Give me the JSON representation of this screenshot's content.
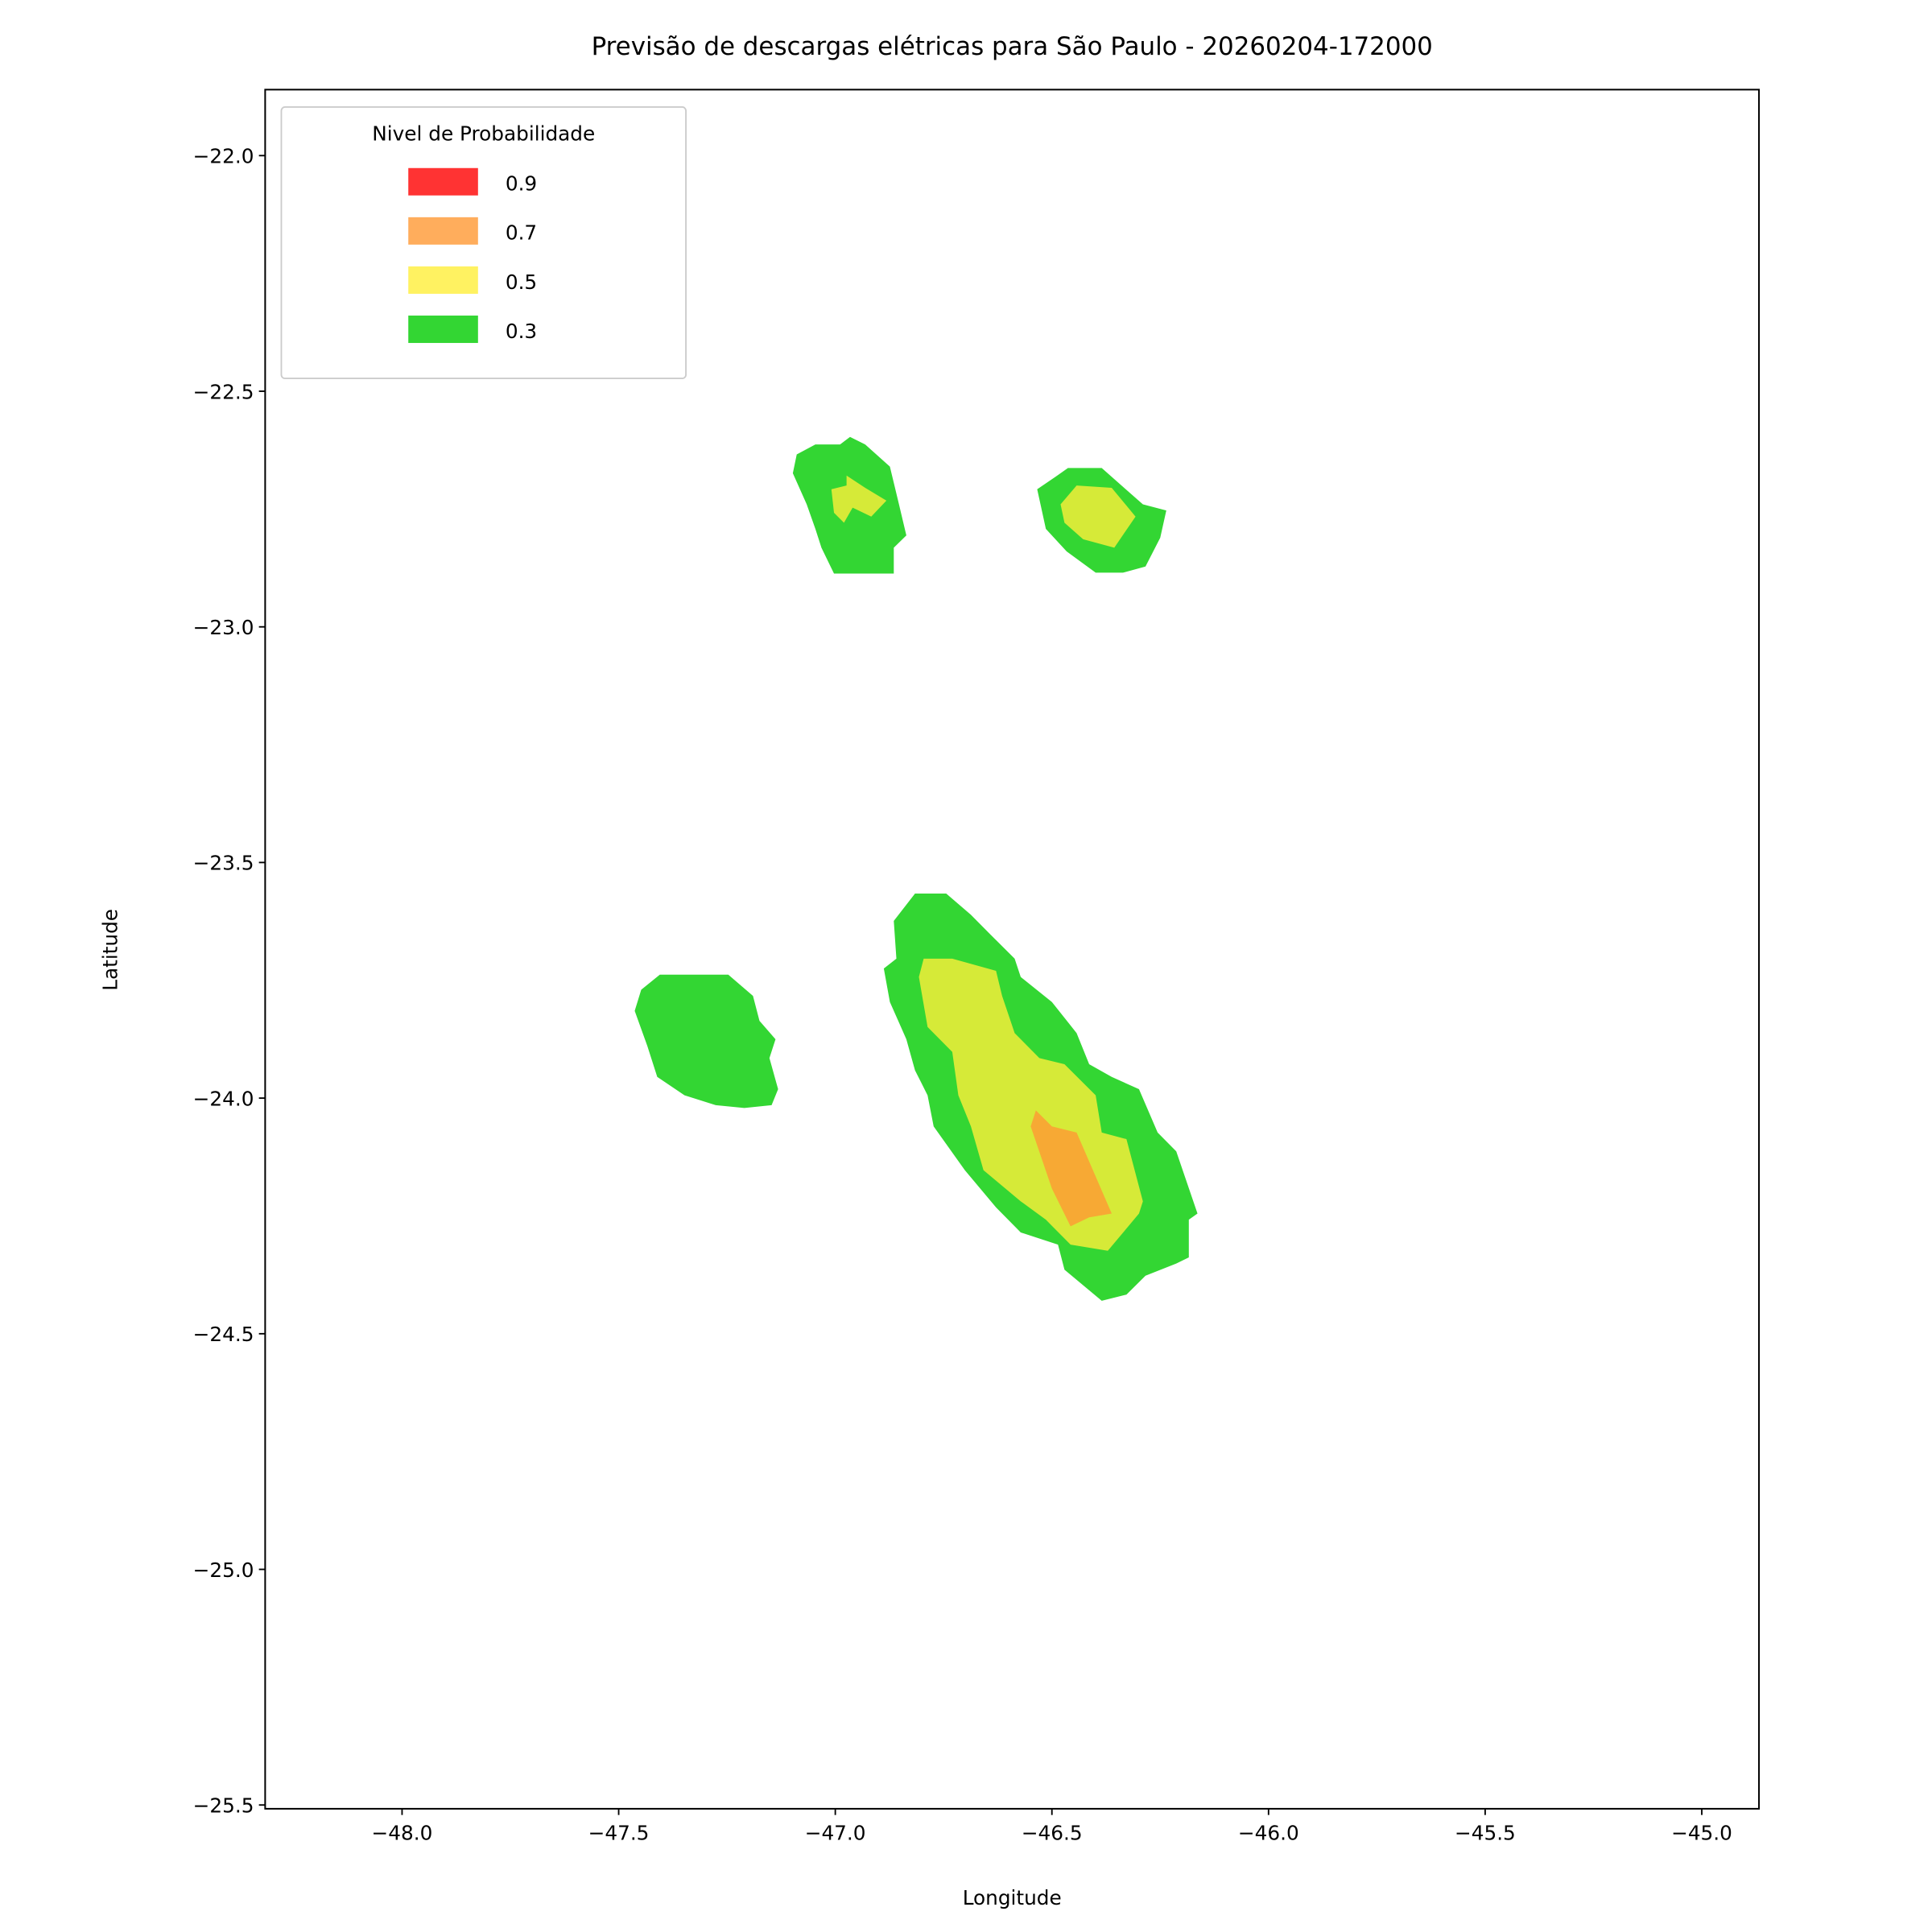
{
  "chart_data": {
    "type": "contour",
    "title": "Previsão de descargas elétricas para São Paulo - 20260204-172000",
    "xlabel": "Longitude",
    "ylabel": "Latitude",
    "xlim": [
      -48.316,
      -44.868
    ],
    "ylim": [
      -25.508,
      -21.86
    ],
    "xticks": [
      {
        "value": -48,
        "label": "−48.0"
      },
      {
        "value": -47.5,
        "label": "−47.5"
      },
      {
        "value": -47,
        "label": "−47.0"
      },
      {
        "value": -46.5,
        "label": "−46.5"
      },
      {
        "value": -46,
        "label": "−46.0"
      },
      {
        "value": -45.5,
        "label": "−45.5"
      },
      {
        "value": -45,
        "label": "−45.0"
      }
    ],
    "yticks": [
      {
        "value": -22,
        "label": "−22.0"
      },
      {
        "value": -22.5,
        "label": "−22.5"
      },
      {
        "value": -23,
        "label": "−23.0"
      },
      {
        "value": -23.5,
        "label": "−23.5"
      },
      {
        "value": -24,
        "label": "−24.0"
      },
      {
        "value": -24.5,
        "label": "−24.5"
      },
      {
        "value": -25,
        "label": "−25.0"
      },
      {
        "value": -25.5,
        "label": "−25.5"
      }
    ],
    "legend_title": "Nivel de Probabilidade",
    "legend": "upper left",
    "alpha": 0.8,
    "grid": false,
    "series": [
      {
        "name": "0.9",
        "color": "#ff0000",
        "regions": []
      },
      {
        "name": "0.7",
        "color": "#ff9933",
        "regions": [
          {
            "x": [
              -46.549,
              -46.537,
              -46.5,
              -46.443,
              -46.362,
              -46.414,
              -46.457,
              -46.5
            ],
            "y": [
              -24.06,
              -24.026,
              -24.06,
              -24.073,
              -24.245,
              -24.253,
              -24.272,
              -24.192
            ]
          }
        ]
      },
      {
        "name": "0.5",
        "color": "#ffef3a",
        "regions": [
          {
            "x": [
              -47.009,
              -46.974,
              -46.974,
              -46.931,
              -46.882,
              -46.917,
              -46.96,
              -46.98,
              -47.003
            ],
            "y": [
              -22.708,
              -22.7,
              -22.679,
              -22.705,
              -22.732,
              -22.766,
              -22.747,
              -22.779,
              -22.758
            ]
          },
          {
            "x": [
              -46.48,
              -46.443,
              -46.362,
              -46.307,
              -46.356,
              -46.428,
              -46.471
            ],
            "y": [
              -22.74,
              -22.7,
              -22.705,
              -22.766,
              -22.832,
              -22.814,
              -22.779
            ]
          },
          {
            "x": [
              -46.807,
              -46.796,
              -46.73,
              -46.629,
              -46.615,
              -46.586,
              -46.529,
              -46.471,
              -46.399,
              -46.385,
              -46.328,
              -46.29,
              -46.299,
              -46.371,
              -46.457,
              -46.514,
              -46.572,
              -46.658,
              -46.687,
              -46.716,
              -46.73,
              -46.787
            ],
            "y": [
              -23.743,
              -23.704,
              -23.704,
              -23.73,
              -23.783,
              -23.862,
              -23.915,
              -23.928,
              -23.994,
              -24.073,
              -24.087,
              -24.219,
              -24.245,
              -24.324,
              -24.311,
              -24.258,
              -24.219,
              -24.153,
              -24.06,
              -23.994,
              -23.902,
              -23.849
            ]
          }
        ]
      },
      {
        "name": "0.3",
        "color": "#00cc00",
        "regions": [
          {
            "x": [
              -47.089,
              -47.046,
              -46.989,
              -46.966,
              -46.931,
              -46.874,
              -46.853,
              -46.836,
              -46.865,
              -46.865,
              -47.003,
              -47.032,
              -47.046,
              -47.066,
              -47.098
            ],
            "y": [
              -22.634,
              -22.613,
              -22.613,
              -22.597,
              -22.613,
              -22.66,
              -22.74,
              -22.806,
              -22.832,
              -22.887,
              -22.887,
              -22.832,
              -22.792,
              -22.74,
              -22.674
            ]
          },
          {
            "x": [
              -46.534,
              -46.491,
              -46.463,
              -46.385,
              -46.29,
              -46.236,
              -46.25,
              -46.284,
              -46.336,
              -46.399,
              -46.466,
              -46.514
            ],
            "y": [
              -22.708,
              -22.681,
              -22.663,
              -22.663,
              -22.74,
              -22.753,
              -22.811,
              -22.872,
              -22.885,
              -22.885,
              -22.84,
              -22.792
            ]
          },
          {
            "x": [
              -47.448,
              -47.405,
              -47.247,
              -47.19,
              -47.175,
              -47.138,
              -47.152,
              -47.132,
              -47.147,
              -47.21,
              -47.276,
              -47.348,
              -47.411,
              -47.434,
              -47.463
            ],
            "y": [
              -23.77,
              -23.738,
              -23.738,
              -23.783,
              -23.836,
              -23.875,
              -23.915,
              -23.981,
              -24.015,
              -24.021,
              -24.015,
              -23.994,
              -23.955,
              -23.889,
              -23.815
            ]
          },
          {
            "x": [
              -46.865,
              -46.816,
              -46.744,
              -46.687,
              -46.644,
              -46.586,
              -46.572,
              -46.5,
              -46.443,
              -46.414,
              -46.362,
              -46.299,
              -46.256,
              -46.213,
              -46.164,
              -46.184,
              -46.184,
              -46.213,
              -46.284,
              -46.328,
              -46.385,
              -46.471,
              -46.486,
              -46.572,
              -46.629,
              -46.701,
              -46.773,
              -46.787,
              -46.816,
              -46.836,
              -46.874,
              -46.888,
              -46.859
            ],
            "y": [
              -23.624,
              -23.566,
              -23.566,
              -23.611,
              -23.651,
              -23.704,
              -23.743,
              -23.796,
              -23.862,
              -23.928,
              -23.955,
              -23.981,
              -24.073,
              -24.113,
              -24.245,
              -24.258,
              -24.338,
              -24.351,
              -24.377,
              -24.417,
              -24.43,
              -24.364,
              -24.311,
              -24.285,
              -24.232,
              -24.153,
              -24.06,
              -23.994,
              -23.941,
              -23.875,
              -23.796,
              -23.725,
              -23.704
            ]
          }
        ]
      }
    ]
  }
}
